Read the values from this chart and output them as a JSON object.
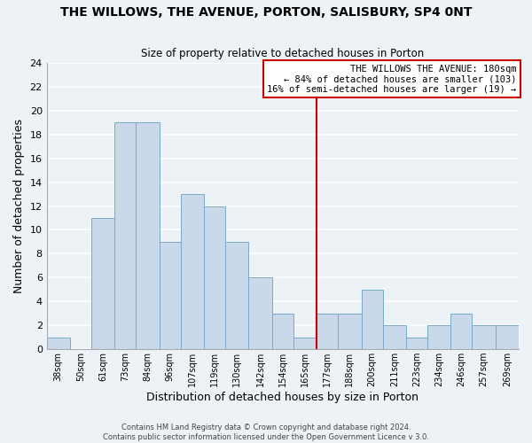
{
  "title": "THE WILLOWS, THE AVENUE, PORTON, SALISBURY, SP4 0NT",
  "subtitle": "Size of property relative to detached houses in Porton",
  "xlabel": "Distribution of detached houses by size in Porton",
  "ylabel": "Number of detached properties",
  "footer_line1": "Contains HM Land Registry data © Crown copyright and database right 2024.",
  "footer_line2": "Contains public sector information licensed under the Open Government Licence v 3.0.",
  "bin_labels": [
    "38sqm",
    "50sqm",
    "61sqm",
    "73sqm",
    "84sqm",
    "96sqm",
    "107sqm",
    "119sqm",
    "130sqm",
    "142sqm",
    "154sqm",
    "165sqm",
    "177sqm",
    "188sqm",
    "200sqm",
    "211sqm",
    "223sqm",
    "234sqm",
    "246sqm",
    "257sqm",
    "269sqm"
  ],
  "bin_edges": [
    38,
    50,
    61,
    73,
    84,
    96,
    107,
    119,
    130,
    142,
    154,
    165,
    177,
    188,
    200,
    211,
    223,
    234,
    246,
    257,
    269,
    281
  ],
  "counts": [
    1,
    0,
    11,
    19,
    19,
    9,
    13,
    12,
    9,
    6,
    3,
    1,
    3,
    3,
    5,
    2,
    1,
    2,
    3,
    2,
    2
  ],
  "bar_facecolor": "#c9d9ea",
  "bar_edgecolor": "#7aaac8",
  "property_line_x": 177,
  "property_line_color": "#cc0000",
  "annotation_title": "THE WILLOWS THE AVENUE: 180sqm",
  "annotation_line1": "← 84% of detached houses are smaller (103)",
  "annotation_line2": "16% of semi-detached houses are larger (19) →",
  "annotation_box_edgecolor": "#cc0000",
  "ylim": [
    0,
    24
  ],
  "yticks": [
    0,
    2,
    4,
    6,
    8,
    10,
    12,
    14,
    16,
    18,
    20,
    22,
    24
  ],
  "background_color": "#edf2f7",
  "grid_color": "#ffffff"
}
